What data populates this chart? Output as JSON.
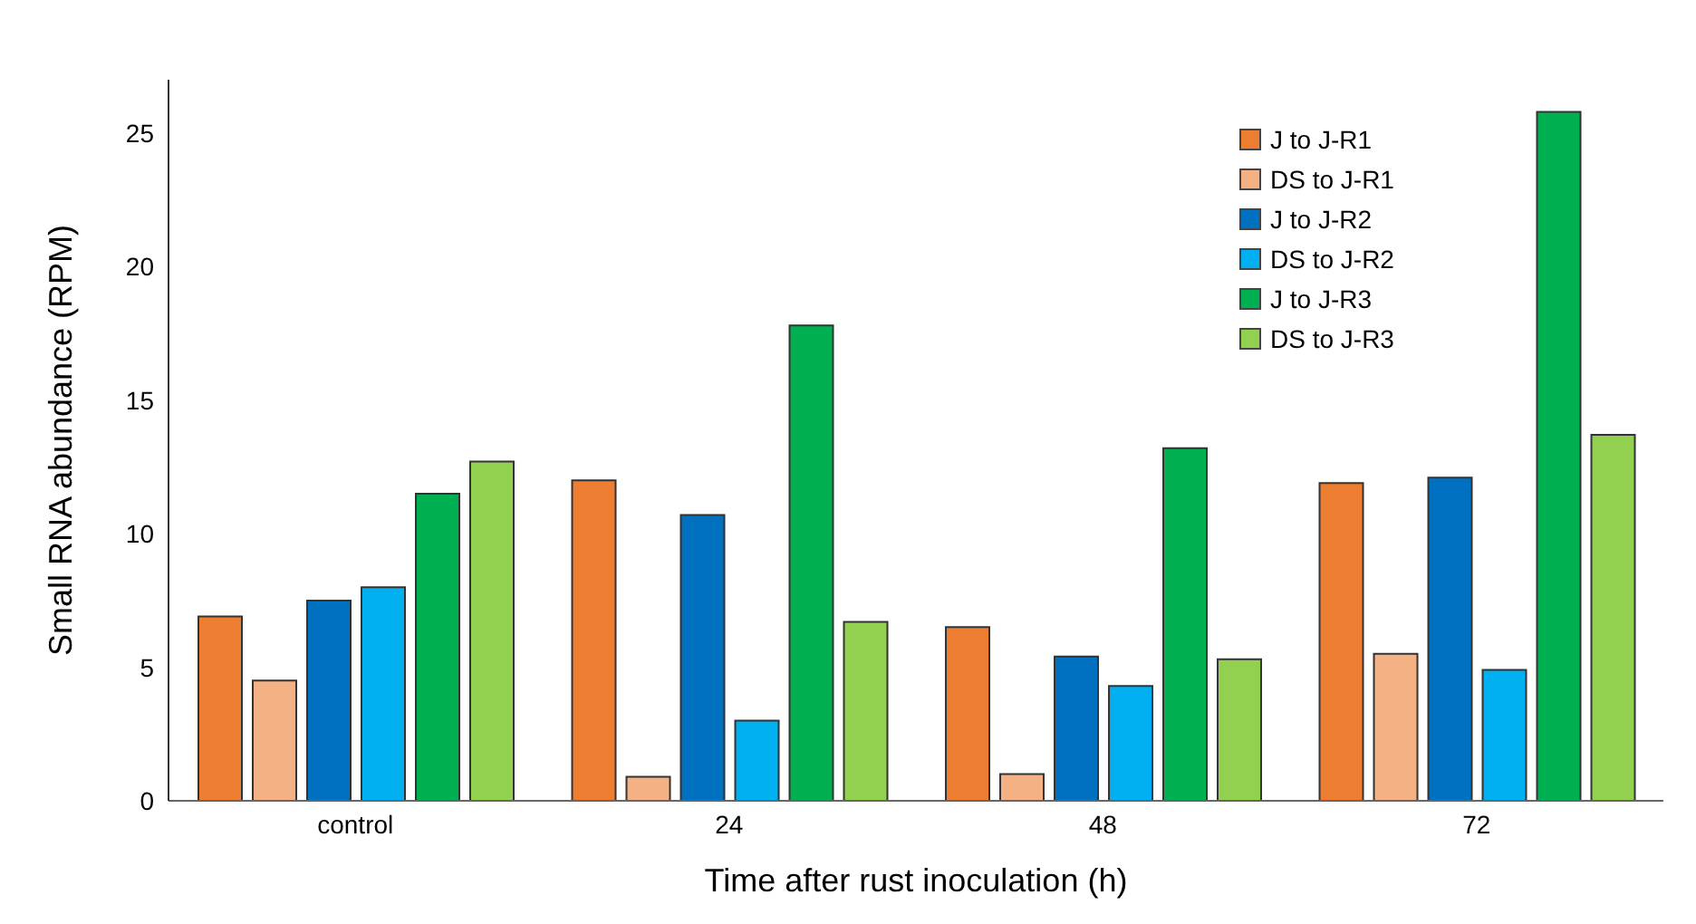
{
  "chart_data": {
    "type": "bar",
    "xlabel": "Time after rust inoculation (h)",
    "ylabel": "Small RNA abundance (RPM)",
    "categories": [
      "control",
      "24",
      "48",
      "72"
    ],
    "series": [
      {
        "name": "J to J-R1",
        "color": "#ed7d31",
        "values": [
          6.9,
          12.0,
          6.5,
          11.9
        ]
      },
      {
        "name": "DS to J-R1",
        "color": "#f4b183",
        "values": [
          4.5,
          0.9,
          1.0,
          5.5
        ]
      },
      {
        "name": "J to J-R2",
        "color": "#0070c0",
        "values": [
          7.5,
          10.7,
          5.4,
          12.1
        ]
      },
      {
        "name": "DS to J-R2",
        "color": "#00b0f0",
        "values": [
          8.0,
          3.0,
          4.3,
          4.9
        ]
      },
      {
        "name": "J to J-R3",
        "color": "#00b050",
        "values": [
          11.5,
          17.8,
          13.2,
          25.8
        ]
      },
      {
        "name": "DS to J-R3",
        "color": "#92d050",
        "values": [
          12.7,
          6.7,
          5.3,
          13.7
        ]
      }
    ],
    "ylim": [
      0,
      27
    ],
    "yticks": [
      0,
      5,
      10,
      15,
      20,
      25
    ],
    "grid": false,
    "legend": "top right"
  }
}
